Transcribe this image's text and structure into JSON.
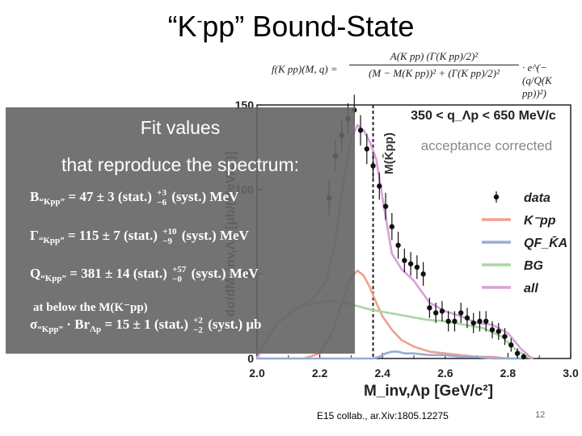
{
  "slide": {
    "title_main": "“K",
    "title_sup": "-",
    "title_rest": "pp” Bound-State",
    "citation": "E15 collab., ar.Xiv:1805.12275",
    "page_number": "12"
  },
  "formula": {
    "lhs": "f(K pp)(M, q) =",
    "numerator": "A(K pp) (Γ(K pp)/2)²",
    "denominator": "(M − M(K pp))² + (Γ(K pp)/2)²",
    "exponent": "· e^(−(q/Q(K pp))²)"
  },
  "fit_box": {
    "heading1": "Fit values",
    "heading2": "that reproduce the spectrum:",
    "B": {
      "sym": "B",
      "sub": "“Kpp”",
      "val": "= 47  ±  3 (stat.)",
      "up": "+3",
      "dn": "−6",
      "tail": "(syst.) MeV"
    },
    "G": {
      "sym": "Γ",
      "sub": "“Kpp”",
      "val": "= 115  ±  7 (stat.)",
      "up": "+10",
      "dn": "−9",
      "tail": "(syst.) MeV"
    },
    "Q": {
      "sym": "Q",
      "sub": "“Kpp”",
      "val": "= 381  ±  14 (stat.)",
      "up": "+57",
      "dn": "−0",
      "tail": "(syst.) MeV"
    },
    "note": "at below the M(K⁻pp)",
    "S": {
      "sym": "σ",
      "sub": "“Kpp”",
      "mid": " · Br",
      "mid_sub": "Λp",
      "val": " = 15  ±  1 (stat.)",
      "up": "+2",
      "dn": "−2",
      "tail": "(syst.) μb"
    }
  },
  "chart_data": {
    "type": "line",
    "title": "350 < q_Λp < 650 MeV/c",
    "subtitle": "acceptance corrected",
    "xlabel": "M_inv,Λp [GeV/c²]",
    "ylabel": "dσ/dM_inv,Λp [μb/(MeV/c²)]",
    "xlim": [
      2.0,
      3.0
    ],
    "ylim": [
      0,
      150
    ],
    "xticks": [
      "2.0",
      "2.2",
      "2.4",
      "2.6",
      "2.8",
      "3.0"
    ],
    "yticks": [
      "0",
      "50",
      "100",
      "150"
    ],
    "threshold_label": "M(K̄pp)",
    "threshold_x": 2.37,
    "legend_position": "right",
    "legend": [
      {
        "label": "data",
        "color": "#000000"
      },
      {
        "label": "K⁻pp",
        "color": "#f0a090"
      },
      {
        "label": "QF_K̄A",
        "color": "#98acd8"
      },
      {
        "label": "BG",
        "color": "#a8d8a0"
      },
      {
        "label": "all",
        "color": "#d8a0d8"
      }
    ],
    "data_points": {
      "x": [
        2.23,
        2.25,
        2.27,
        2.29,
        2.31,
        2.33,
        2.35,
        2.37,
        2.39,
        2.41,
        2.43,
        2.45,
        2.47,
        2.49,
        2.51,
        2.53,
        2.55,
        2.57,
        2.59,
        2.61,
        2.63,
        2.65,
        2.67,
        2.69,
        2.71,
        2.73,
        2.75,
        2.77,
        2.79,
        2.81,
        2.83,
        2.85
      ],
      "y": [
        95,
        120,
        132,
        142,
        147,
        135,
        124,
        114,
        102,
        90,
        78,
        67,
        58,
        56,
        54,
        50,
        30,
        27,
        28,
        22,
        22,
        27,
        24,
        21,
        22,
        22,
        17,
        16,
        13,
        8,
        3,
        1
      ],
      "err": [
        10,
        9,
        9,
        9,
        9,
        9,
        9,
        8,
        8,
        8,
        8,
        8,
        7,
        7,
        7,
        7,
        6,
        6,
        6,
        6,
        6,
        6,
        6,
        6,
        6,
        6,
        5,
        5,
        5,
        4,
        3,
        2
      ]
    },
    "series": [
      {
        "name": "K⁻pp",
        "color": "#f0a090",
        "x": [
          2.0,
          2.15,
          2.2,
          2.24,
          2.27,
          2.3,
          2.32,
          2.34,
          2.36,
          2.38,
          2.4,
          2.43,
          2.46,
          2.5,
          2.55,
          2.6,
          2.65,
          2.7,
          2.75,
          2.8,
          2.85
        ],
        "y": [
          0,
          0,
          3,
          15,
          33,
          48,
          52,
          49,
          42,
          33,
          25,
          17,
          11,
          7,
          4,
          3,
          2,
          1,
          1,
          0,
          0
        ]
      },
      {
        "name": "QF_K̄A",
        "color": "#98acd8",
        "x": [
          2.0,
          2.35,
          2.37,
          2.39,
          2.41,
          2.43,
          2.45,
          2.47,
          2.5,
          2.55,
          2.6,
          2.65,
          2.7,
          2.75,
          2.8,
          2.85
        ],
        "y": [
          0,
          0,
          0,
          1,
          3,
          4,
          4,
          3,
          3,
          2,
          2,
          1,
          1,
          0,
          0,
          0
        ]
      },
      {
        "name": "BG",
        "color": "#a8d8a0",
        "x": [
          2.0,
          2.02,
          2.06,
          2.12,
          2.18,
          2.24,
          2.3,
          2.36,
          2.42,
          2.48,
          2.54,
          2.6,
          2.66,
          2.72,
          2.78,
          2.82,
          2.86,
          2.88
        ],
        "y": [
          0,
          8,
          20,
          29,
          33,
          34,
          32,
          29,
          27,
          25,
          23,
          22,
          20,
          18,
          13,
          6,
          1,
          0
        ]
      },
      {
        "name": "all",
        "color": "#d8a0d8",
        "x": [
          2.0,
          2.02,
          2.06,
          2.12,
          2.18,
          2.22,
          2.25,
          2.28,
          2.3,
          2.32,
          2.34,
          2.36,
          2.38,
          2.4,
          2.43,
          2.46,
          2.5,
          2.55,
          2.6,
          2.65,
          2.7,
          2.75,
          2.8,
          2.84,
          2.87,
          2.88
        ],
        "y": [
          0,
          8,
          20,
          29,
          36,
          45,
          70,
          110,
          130,
          138,
          135,
          128,
          118,
          95,
          62,
          53,
          46,
          33,
          28,
          25,
          21,
          20,
          15,
          6,
          1,
          0
        ]
      }
    ]
  }
}
